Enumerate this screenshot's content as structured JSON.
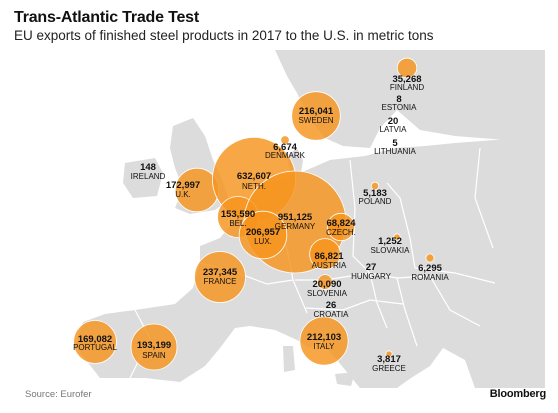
{
  "title": "Trans-Atlantic Trade Test",
  "subtitle": "EU exports of finished steel products in 2017 to the U.S. in metric tons",
  "source": "Source: Eurofer",
  "brand": "Bloomberg",
  "colors": {
    "land": "#dcdcdc",
    "sea": "#ffffff",
    "border": "#ffffff",
    "bubble": "#f7941d"
  },
  "countries": [
    {
      "id": "finland",
      "name": "FINLAND",
      "value_label": "35,268",
      "value": 35268
    },
    {
      "id": "estonia",
      "name": "ESTONIA",
      "value_label": "8",
      "value": 8
    },
    {
      "id": "latvia",
      "name": "LATVIA",
      "value_label": "20",
      "value": 20
    },
    {
      "id": "lithuania",
      "name": "LITHUANIA",
      "value_label": "5",
      "value": 5
    },
    {
      "id": "sweden",
      "name": "SWEDEN",
      "value_label": "216,041",
      "value": 216041
    },
    {
      "id": "denmark",
      "name": "DENMARK",
      "value_label": "6,674",
      "value": 6674
    },
    {
      "id": "ireland",
      "name": "IRELAND",
      "value_label": "148",
      "value": 148
    },
    {
      "id": "uk",
      "name": "U.K.",
      "value_label": "172,997",
      "value": 172997
    },
    {
      "id": "netherlands",
      "name": "NETH.",
      "value_label": "632,607",
      "value": 632607
    },
    {
      "id": "poland",
      "name": "POLAND",
      "value_label": "5,183",
      "value": 5183
    },
    {
      "id": "belgium",
      "name": "BEL.",
      "value_label": "153,590",
      "value": 153590
    },
    {
      "id": "germany",
      "name": "GERMANY",
      "value_label": "951,125",
      "value": 951125
    },
    {
      "id": "czech",
      "name": "CZECH.",
      "value_label": "68,824",
      "value": 68824
    },
    {
      "id": "luxembourg",
      "name": "LUX.",
      "value_label": "206,957",
      "value": 206957
    },
    {
      "id": "slovakia",
      "name": "SLOVAKIA",
      "value_label": "1,252",
      "value": 1252
    },
    {
      "id": "austria",
      "name": "AUSTRIA",
      "value_label": "86,821",
      "value": 86821
    },
    {
      "id": "hungary",
      "name": "HUNGARY",
      "value_label": "27",
      "value": 27
    },
    {
      "id": "romania",
      "name": "ROMANIA",
      "value_label": "6,295",
      "value": 6295
    },
    {
      "id": "france",
      "name": "FRANCE",
      "value_label": "237,345",
      "value": 237345
    },
    {
      "id": "slovenia",
      "name": "SLOVENIA",
      "value_label": "20,090",
      "value": 20090
    },
    {
      "id": "croatia",
      "name": "CROATIA",
      "value_label": "26",
      "value": 26
    },
    {
      "id": "portugal",
      "name": "PORTUGAL",
      "value_label": "169,082",
      "value": 169082
    },
    {
      "id": "spain",
      "name": "SPAIN",
      "value_label": "193,199",
      "value": 193199
    },
    {
      "id": "italy",
      "name": "ITALY",
      "value_label": "212,103",
      "value": 212103
    },
    {
      "id": "greece",
      "name": "GREECE",
      "value_label": "3,817",
      "value": 3817
    }
  ]
}
